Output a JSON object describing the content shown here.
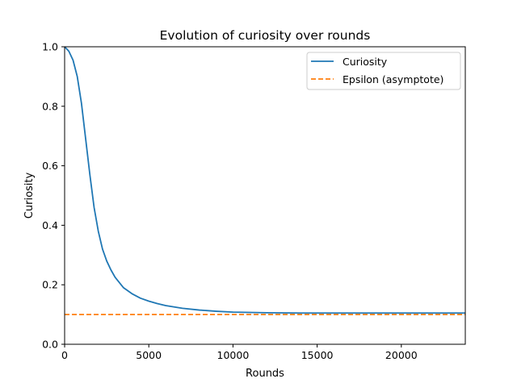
{
  "chart_data": {
    "type": "line",
    "title": "Evolution of curiosity over rounds",
    "xlabel": "Rounds",
    "ylabel": "Curiosity",
    "xlim": [
      0,
      23800
    ],
    "ylim": [
      0.0,
      1.0
    ],
    "x_ticks": [
      0,
      5000,
      10000,
      15000,
      20000
    ],
    "x_tick_labels": [
      "0",
      "5000",
      "10000",
      "15000",
      "20000"
    ],
    "y_ticks": [
      0.0,
      0.2,
      0.4,
      0.6,
      0.8,
      1.0
    ],
    "y_tick_labels": [
      "0.0",
      "0.2",
      "0.4",
      "0.6",
      "0.8",
      "1.0"
    ],
    "grid": false,
    "legend_position": "top-right",
    "series": [
      {
        "name": "Curiosity",
        "style": "solid",
        "color": "#1f77b4",
        "x": [
          0,
          250,
          500,
          750,
          1000,
          1250,
          1500,
          1750,
          2000,
          2250,
          2500,
          2750,
          3000,
          3500,
          4000,
          4500,
          5000,
          5500,
          6000,
          7000,
          8000,
          9000,
          10000,
          11000,
          12000,
          14000,
          16000,
          18000,
          20000,
          22000,
          23800
        ],
        "y": [
          1.0,
          0.985,
          0.955,
          0.9,
          0.81,
          0.69,
          0.57,
          0.46,
          0.38,
          0.32,
          0.28,
          0.25,
          0.225,
          0.19,
          0.17,
          0.155,
          0.145,
          0.137,
          0.13,
          0.121,
          0.115,
          0.111,
          0.108,
          0.107,
          0.106,
          0.105,
          0.105,
          0.105,
          0.105,
          0.105,
          0.105
        ]
      },
      {
        "name": "Epsilon (asymptote)",
        "style": "dashed",
        "color": "#ff7f0e",
        "x": [
          0,
          23800
        ],
        "y": [
          0.1,
          0.1
        ]
      }
    ]
  }
}
